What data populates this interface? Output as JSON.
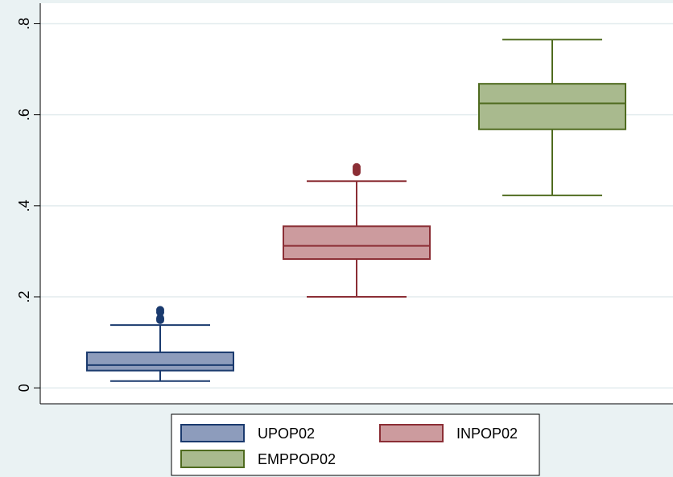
{
  "chart_data": {
    "type": "box",
    "title": "",
    "xlabel": "",
    "ylabel": "",
    "ylim": [
      -0.035,
      0.845
    ],
    "yticks": [
      {
        "value": 0,
        "label": "0"
      },
      {
        "value": 0.2,
        "label": ".2"
      },
      {
        "value": 0.4,
        "label": ".4"
      },
      {
        "value": 0.6,
        "label": ".6"
      },
      {
        "value": 0.8,
        "label": ".8"
      }
    ],
    "grid": true,
    "legend_position": "bottom",
    "series": [
      {
        "name": "UPOP02",
        "color": "#8d9cbc",
        "edge_color": "#1a3a6e",
        "whisker_low": 0.015,
        "q1": 0.038,
        "median": 0.05,
        "q3": 0.078,
        "whisker_high": 0.138,
        "outliers": [
          0.149,
          0.153,
          0.166,
          0.171
        ]
      },
      {
        "name": "INPOP02",
        "color": "#cc9b9e",
        "edge_color": "#8b2e35",
        "whisker_low": 0.2,
        "q1": 0.283,
        "median": 0.312,
        "q3": 0.355,
        "whisker_high": 0.454,
        "outliers": [
          0.474,
          0.478,
          0.481,
          0.485
        ]
      },
      {
        "name": "EMPPOP02",
        "color": "#a9ba8e",
        "edge_color": "#4f6b1f",
        "whisker_low": 0.423,
        "q1": 0.568,
        "median": 0.625,
        "q3": 0.668,
        "whisker_high": 0.765,
        "outliers": []
      }
    ]
  }
}
